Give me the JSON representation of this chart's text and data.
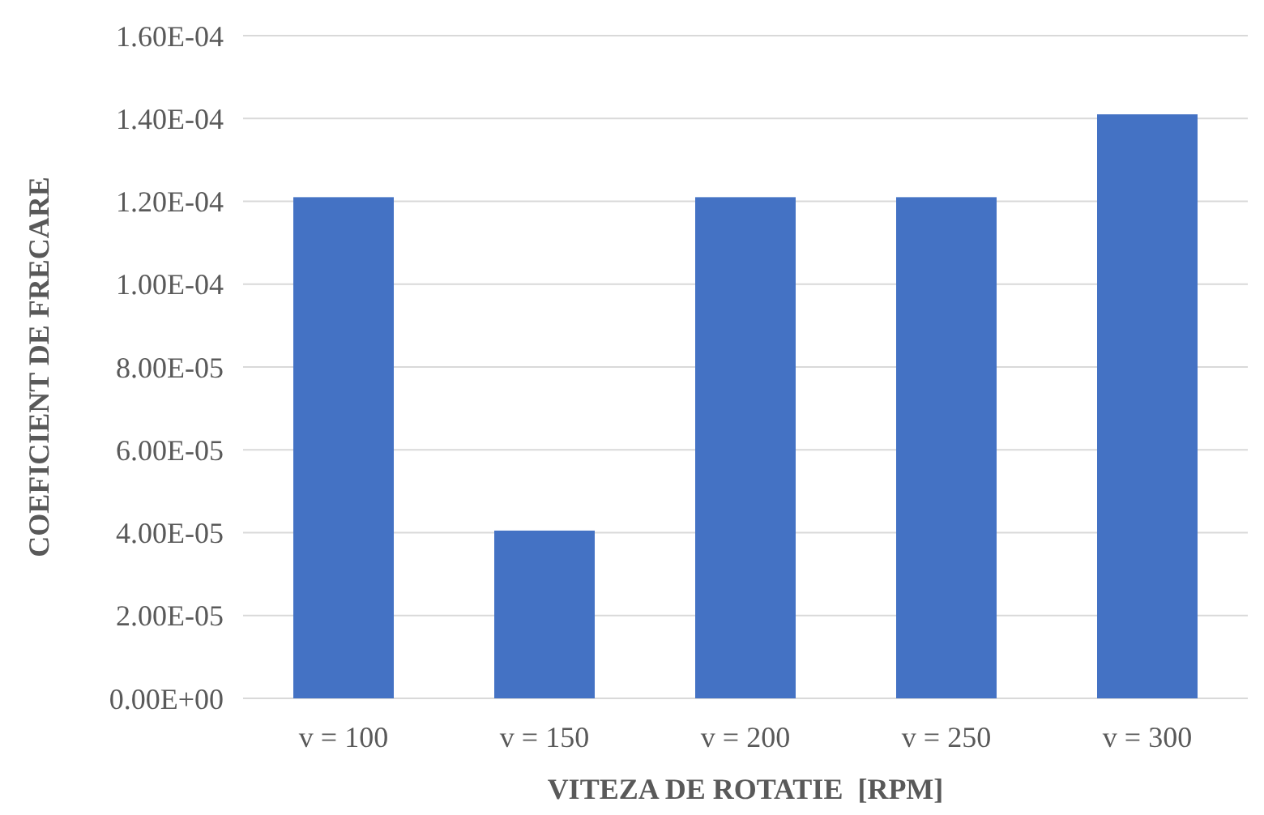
{
  "chart_data": {
    "type": "bar",
    "xlabel": "VITEZA DE ROTATIE  [RPM]",
    "ylabel": "COEFICIENT DE FRECARE",
    "categories": [
      "v = 100",
      "v = 150",
      "v = 200",
      "v = 250",
      "v = 300"
    ],
    "values": [
      0.000121,
      4.05e-05,
      0.000121,
      0.000121,
      0.000141
    ],
    "color": "#4472c4",
    "ylim": [
      0,
      0.00016
    ],
    "yticks": [
      {
        "value": 0,
        "label": "0.00E+00"
      },
      {
        "value": 2e-05,
        "label": "2.00E-05"
      },
      {
        "value": 4e-05,
        "label": "4.00E-05"
      },
      {
        "value": 6e-05,
        "label": "6.00E-05"
      },
      {
        "value": 8e-05,
        "label": "8.00E-05"
      },
      {
        "value": 0.0001,
        "label": "1.00E-04"
      },
      {
        "value": 0.00012,
        "label": "1.20E-04"
      },
      {
        "value": 0.00014,
        "label": "1.40E-04"
      },
      {
        "value": 0.00016,
        "label": "1.60E-04"
      }
    ],
    "grid": "y"
  }
}
